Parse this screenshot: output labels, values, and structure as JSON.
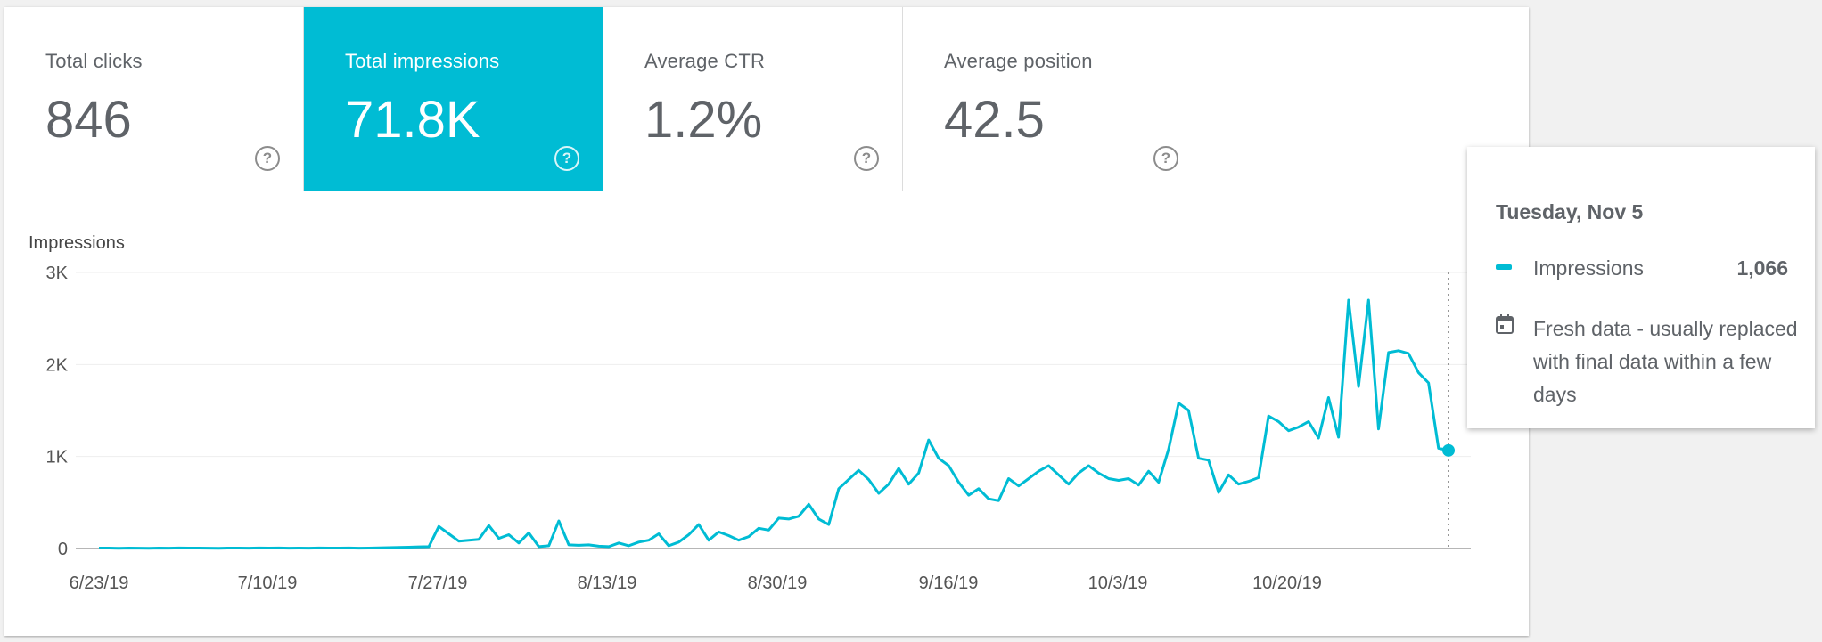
{
  "metrics": [
    {
      "label": "Total clicks",
      "value": "846",
      "selected": false
    },
    {
      "label": "Total impressions",
      "value": "71.8K",
      "selected": true
    },
    {
      "label": "Average CTR",
      "value": "1.2%",
      "selected": false
    },
    {
      "label": "Average position",
      "value": "42.5",
      "selected": false
    }
  ],
  "help_icon": "help-circle-icon",
  "colors": {
    "accent": "#00bcd4",
    "text": "#5f6368",
    "grid": "#eeeeee"
  },
  "tooltip": {
    "date": "Tuesday, Nov 5",
    "series_label": "Impressions",
    "value": "1,066",
    "note": "Fresh data - usually replaced with final data within a few days",
    "note_icon": "calendar-icon"
  },
  "chart_data": {
    "type": "line",
    "ylabel": "Impressions",
    "ylim": [
      0,
      3000
    ],
    "yticks": [
      0,
      1000,
      2000,
      3000
    ],
    "ytick_labels": [
      "0",
      "1K",
      "2K",
      "3K"
    ],
    "xtick_labels": [
      "6/23/19",
      "7/10/19",
      "7/27/19",
      "8/13/19",
      "8/30/19",
      "9/16/19",
      "10/3/19",
      "10/20/19"
    ],
    "x_start": "6/23/19",
    "x_end": "11/5/19",
    "grid": true,
    "highlight_last_point": true,
    "series": [
      {
        "name": "Impressions",
        "values": [
          5,
          5,
          3,
          5,
          4,
          3,
          5,
          4,
          6,
          5,
          5,
          4,
          3,
          5,
          5,
          4,
          6,
          5,
          6,
          4,
          5,
          4,
          6,
          5,
          5,
          6,
          4,
          5,
          8,
          10,
          12,
          15,
          18,
          20,
          240,
          160,
          80,
          90,
          100,
          250,
          110,
          150,
          60,
          170,
          20,
          30,
          300,
          40,
          35,
          40,
          25,
          20,
          60,
          30,
          70,
          90,
          160,
          30,
          70,
          150,
          260,
          90,
          180,
          140,
          90,
          130,
          220,
          200,
          330,
          320,
          350,
          480,
          320,
          260,
          650,
          750,
          850,
          750,
          600,
          700,
          870,
          700,
          820,
          1180,
          980,
          900,
          720,
          580,
          650,
          540,
          520,
          760,
          680,
          760,
          840,
          900,
          800,
          700,
          820,
          900,
          820,
          760,
          740,
          760,
          690,
          840,
          720,
          1080,
          1580,
          1500,
          980,
          960,
          610,
          800,
          700,
          730,
          770,
          1440,
          1380,
          1280,
          1320,
          1380,
          1200,
          1640,
          1210,
          2700,
          1760,
          2700,
          1300,
          2130,
          2150,
          2120,
          1910,
          1800,
          1090,
          1066
        ]
      }
    ]
  }
}
